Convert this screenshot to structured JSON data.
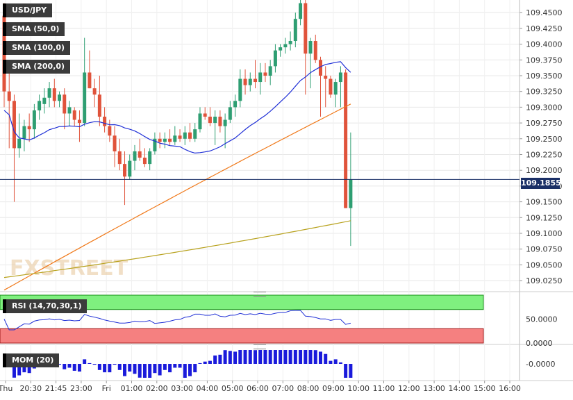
{
  "chart_data": {
    "type": "candlestick",
    "symbol": "USD/JPY",
    "overlays": [
      {
        "name": "SMA (50,0)",
        "color": "#1f2fd6"
      },
      {
        "name": "SMA (100,0)",
        "color": "#f07818"
      },
      {
        "name": "SMA (200,0)",
        "color": "#b8a21e"
      }
    ],
    "price_axis": {
      "ticks": [
        "109.4500",
        "109.4250",
        "109.4000",
        "109.3750",
        "109.3500",
        "109.3250",
        "109.3000",
        "109.2750",
        "109.2500",
        "109.2250",
        "109.2000",
        "109.1750",
        "109.1500",
        "109.1250",
        "109.1000",
        "109.0750",
        "109.0500",
        "109.0250"
      ],
      "range": [
        109.0075,
        109.47
      ]
    },
    "current_price": "109.1855",
    "time_axis": {
      "labels": [
        "Thu",
        "20:30",
        "21:45",
        "23:00",
        "Fri",
        "01:00",
        "02:00",
        "03:00",
        "04:00",
        "05:00",
        "06:00",
        "07:00",
        "08:00",
        "09:00",
        "10:00",
        "11:00",
        "12:00",
        "13:00",
        "14:00",
        "15:00",
        "16:00"
      ]
    },
    "ohlc": [
      [
        109.445,
        109.465,
        109.3,
        109.325
      ],
      [
        109.325,
        109.355,
        109.235,
        109.31
      ],
      [
        109.31,
        109.32,
        109.15,
        109.235
      ],
      [
        109.235,
        109.29,
        109.22,
        109.25
      ],
      [
        109.25,
        109.28,
        109.23,
        109.27
      ],
      [
        109.27,
        109.29,
        109.245,
        109.265
      ],
      [
        109.265,
        109.305,
        109.25,
        109.295
      ],
      [
        109.295,
        109.32,
        109.28,
        109.31
      ],
      [
        109.305,
        109.33,
        109.29,
        109.315
      ],
      [
        109.315,
        109.34,
        109.3,
        109.33
      ],
      [
        109.33,
        109.345,
        109.3,
        109.31
      ],
      [
        109.31,
        109.325,
        109.3,
        109.32
      ],
      [
        109.32,
        109.33,
        109.265,
        109.29
      ],
      [
        109.29,
        109.31,
        109.27,
        109.3
      ],
      [
        109.295,
        109.3,
        109.27,
        109.28
      ],
      [
        109.28,
        109.295,
        109.245,
        109.275
      ],
      [
        109.275,
        109.41,
        109.27,
        109.355
      ],
      [
        109.355,
        109.39,
        109.33,
        109.33
      ],
      [
        109.33,
        109.345,
        109.3,
        109.32
      ],
      [
        109.32,
        109.35,
        109.27,
        109.285
      ],
      [
        109.285,
        109.3,
        109.26,
        109.27
      ],
      [
        109.27,
        109.28,
        109.245,
        109.255
      ],
      [
        109.255,
        109.27,
        109.205,
        109.23
      ],
      [
        109.23,
        109.25,
        109.2,
        109.21
      ],
      [
        109.21,
        109.23,
        109.145,
        109.19
      ],
      [
        109.19,
        109.225,
        109.185,
        109.215
      ],
      [
        109.215,
        109.24,
        109.2,
        109.23
      ],
      [
        109.23,
        109.25,
        109.215,
        109.22
      ],
      [
        109.22,
        109.235,
        109.205,
        109.21
      ],
      [
        109.21,
        109.235,
        109.2,
        109.23
      ],
      [
        109.23,
        109.26,
        109.225,
        109.25
      ],
      [
        109.25,
        109.26,
        109.235,
        109.245
      ],
      [
        109.245,
        109.26,
        109.235,
        109.25
      ],
      [
        109.25,
        109.265,
        109.24,
        109.245
      ],
      [
        109.245,
        109.27,
        109.24,
        109.255
      ],
      [
        109.255,
        109.265,
        109.245,
        109.25
      ],
      [
        109.25,
        109.27,
        109.24,
        109.26
      ],
      [
        109.26,
        109.275,
        109.245,
        109.25
      ],
      [
        109.25,
        109.275,
        109.245,
        109.265
      ],
      [
        109.265,
        109.3,
        109.26,
        109.29
      ],
      [
        109.29,
        109.3,
        109.28,
        109.285
      ],
      [
        109.285,
        109.3,
        109.27,
        109.275
      ],
      [
        109.275,
        109.295,
        109.24,
        109.285
      ],
      [
        109.285,
        109.295,
        109.26,
        109.27
      ],
      [
        109.27,
        109.29,
        109.235,
        109.28
      ],
      [
        109.28,
        109.31,
        109.275,
        109.3
      ],
      [
        109.3,
        109.32,
        109.285,
        109.31
      ],
      [
        109.31,
        109.36,
        109.3,
        109.345
      ],
      [
        109.345,
        109.36,
        109.32,
        109.335
      ],
      [
        109.335,
        109.355,
        109.325,
        109.345
      ],
      [
        109.345,
        109.375,
        109.33,
        109.34
      ],
      [
        109.34,
        109.37,
        109.32,
        109.355
      ],
      [
        109.355,
        109.37,
        109.34,
        109.35
      ],
      [
        109.35,
        109.375,
        109.335,
        109.365
      ],
      [
        109.365,
        109.4,
        109.355,
        109.39
      ],
      [
        109.39,
        109.4,
        109.38,
        109.395
      ],
      [
        109.395,
        109.41,
        109.385,
        109.4
      ],
      [
        109.4,
        109.42,
        109.39,
        109.405
      ],
      [
        109.405,
        109.45,
        109.395,
        109.44
      ],
      [
        109.44,
        109.475,
        109.43,
        109.465
      ],
      [
        109.465,
        109.475,
        109.32,
        109.385
      ],
      [
        109.385,
        109.41,
        109.33,
        109.405
      ],
      [
        109.405,
        109.415,
        109.37,
        109.375
      ],
      [
        109.375,
        109.38,
        109.285,
        109.35
      ],
      [
        109.35,
        109.365,
        109.3,
        109.345
      ],
      [
        109.345,
        109.35,
        109.315,
        109.32
      ],
      [
        109.32,
        109.345,
        109.3,
        109.34
      ],
      [
        109.34,
        109.365,
        109.3,
        109.355
      ],
      [
        109.355,
        109.36,
        109.14,
        109.14
      ],
      [
        109.14,
        109.26,
        109.08,
        109.185
      ]
    ],
    "rsi": {
      "label": "RSI (14,70,30,1)",
      "overbought": 70,
      "oversold": 30,
      "axis_ticks": [
        "50.0000",
        "0.0000"
      ]
    },
    "momentum": {
      "label": "MOM (20)",
      "axis_ticks": [
        "-0.0000"
      ]
    }
  }
}
